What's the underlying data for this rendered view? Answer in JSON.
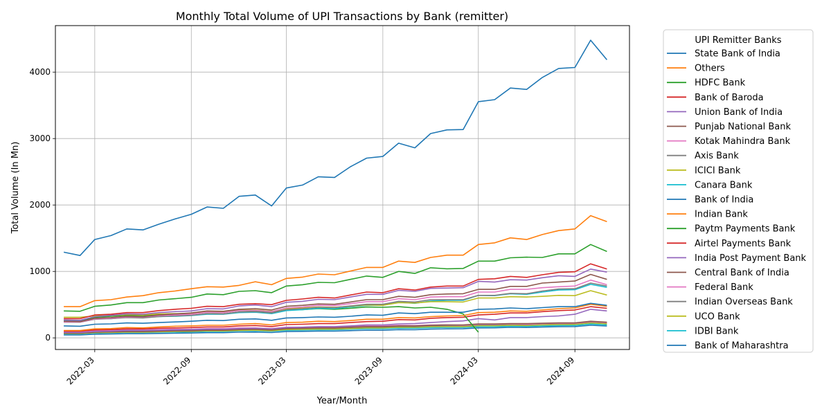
{
  "chart_data": {
    "type": "line",
    "title": "Monthly Total Volume of UPI Transactions by Bank (remitter)",
    "xlabel": "Year/Month",
    "ylabel": "Total Volume (In Mn)",
    "x": [
      "2022-01",
      "2022-02",
      "2022-03",
      "2022-04",
      "2022-05",
      "2022-06",
      "2022-07",
      "2022-08",
      "2022-09",
      "2022-10",
      "2022-11",
      "2022-12",
      "2023-01",
      "2023-02",
      "2023-03",
      "2023-04",
      "2023-05",
      "2023-06",
      "2023-07",
      "2023-08",
      "2023-09",
      "2023-10",
      "2023-11",
      "2023-12",
      "2024-01",
      "2024-02",
      "2024-03",
      "2024-04",
      "2024-05",
      "2024-06",
      "2024-07",
      "2024-08",
      "2024-09",
      "2024-10",
      "2024-11"
    ],
    "x_ticks": [
      "2022-03",
      "2022-09",
      "2023-03",
      "2023-09",
      "2024-03",
      "2024-09"
    ],
    "y_ticks": [
      0,
      1000,
      2000,
      3000,
      4000
    ],
    "xlim": [
      "2021-12-16",
      "2024-12-14"
    ],
    "ylim": [
      -175,
      4700
    ],
    "grid": true,
    "legend": {
      "title": "UPI Remitter Banks",
      "placement": "outside-right"
    },
    "series": [
      {
        "name": "State Bank of India",
        "color": "#1f77b4",
        "values": [
          1290,
          1240,
          1480,
          1540,
          1640,
          1625,
          1710,
          1790,
          1860,
          1970,
          1950,
          2130,
          2150,
          1985,
          2255,
          2300,
          2425,
          2415,
          2575,
          2705,
          2730,
          2930,
          2860,
          3075,
          3130,
          3135,
          3555,
          3585,
          3760,
          3740,
          3920,
          4055,
          4070,
          4480,
          4185
        ]
      },
      {
        "name": "Others",
        "color": "#ff7f0e",
        "values": [
          470,
          470,
          560,
          575,
          615,
          635,
          680,
          705,
          740,
          770,
          765,
          790,
          845,
          800,
          895,
          915,
          960,
          950,
          1005,
          1060,
          1060,
          1155,
          1135,
          1210,
          1245,
          1245,
          1405,
          1430,
          1505,
          1480,
          1555,
          1615,
          1640,
          1840,
          1750
        ]
      },
      {
        "name": "HDFC Bank",
        "color": "#2ca02c",
        "values": [
          405,
          400,
          475,
          495,
          530,
          530,
          570,
          590,
          610,
          660,
          650,
          700,
          710,
          680,
          780,
          800,
          835,
          830,
          880,
          930,
          910,
          1000,
          970,
          1055,
          1040,
          1045,
          1155,
          1155,
          1205,
          1215,
          1210,
          1265,
          1265,
          1405,
          1300
        ]
      },
      {
        "name": "Bank of Baroda",
        "color": "#d62728",
        "values": [
          290,
          290,
          345,
          355,
          380,
          380,
          410,
          430,
          445,
          475,
          470,
          505,
          515,
          500,
          565,
          585,
          610,
          600,
          645,
          690,
          680,
          740,
          720,
          765,
          780,
          780,
          880,
          890,
          925,
          910,
          950,
          985,
          995,
          1115,
          1035
        ]
      },
      {
        "name": "Union Bank of India",
        "color": "#9467bd",
        "values": [
          270,
          265,
          320,
          340,
          360,
          355,
          380,
          395,
          405,
          440,
          435,
          480,
          495,
          470,
          535,
          550,
          580,
          575,
          615,
          655,
          655,
          715,
          700,
          745,
          750,
          755,
          850,
          840,
          875,
          870,
          905,
          935,
          925,
          1035,
          990
        ]
      },
      {
        "name": "Punjab National Bank",
        "color": "#8c564b",
        "values": [
          250,
          245,
          295,
          305,
          325,
          320,
          345,
          360,
          375,
          405,
          400,
          430,
          440,
          420,
          475,
          490,
          510,
          505,
          540,
          575,
          575,
          625,
          610,
          650,
          660,
          665,
          730,
          730,
          775,
          775,
          825,
          840,
          855,
          955,
          880
        ]
      },
      {
        "name": "Kotak Mahindra Bank",
        "color": "#e377c2",
        "values": [
          240,
          240,
          285,
          295,
          315,
          315,
          335,
          345,
          355,
          385,
          380,
          410,
          415,
          395,
          450,
          465,
          490,
          485,
          515,
          545,
          545,
          590,
          575,
          615,
          620,
          620,
          690,
          690,
          730,
          730,
          755,
          770,
          780,
          870,
          800
        ]
      },
      {
        "name": "Axis Bank",
        "color": "#7f7f7f",
        "values": [
          235,
          235,
          280,
          290,
          305,
          300,
          320,
          330,
          340,
          365,
          360,
          390,
          395,
          375,
          425,
          440,
          460,
          455,
          480,
          505,
          505,
          550,
          540,
          575,
          575,
          575,
          640,
          640,
          670,
          665,
          705,
          735,
          740,
          825,
          780
        ]
      },
      {
        "name": "ICICI Bank",
        "color": "#bcbd22",
        "values": [
          310,
          310,
          330,
          340,
          350,
          345,
          360,
          365,
          370,
          390,
          395,
          420,
          420,
          400,
          440,
          450,
          465,
          460,
          475,
          495,
          490,
          530,
          525,
          545,
          545,
          540,
          600,
          600,
          620,
          615,
          625,
          640,
          635,
          710,
          645
        ]
      },
      {
        "name": "Canara Bank",
        "color": "#17becf",
        "values": [
          255,
          255,
          285,
          290,
          310,
          305,
          320,
          325,
          335,
          355,
          355,
          380,
          385,
          365,
          410,
          425,
          445,
          440,
          465,
          490,
          490,
          535,
          520,
          555,
          565,
          565,
          640,
          635,
          665,
          655,
          690,
          720,
          725,
          805,
          760
        ]
      },
      {
        "name": "Bank of India",
        "color": "#1f77b4",
        "values": [
          180,
          175,
          205,
          210,
          225,
          220,
          230,
          240,
          250,
          265,
          260,
          280,
          285,
          265,
          300,
          305,
          315,
          310,
          325,
          345,
          340,
          375,
          365,
          385,
          385,
          385,
          430,
          435,
          450,
          440,
          455,
          470,
          470,
          520,
          490
        ]
      },
      {
        "name": "Indian Bank",
        "color": "#ff7f0e",
        "values": [
          110,
          110,
          135,
          140,
          155,
          150,
          165,
          175,
          180,
          190,
          190,
          205,
          215,
          195,
          230,
          235,
          250,
          245,
          260,
          280,
          280,
          305,
          300,
          320,
          330,
          335,
          380,
          385,
          405,
          400,
          420,
          440,
          450,
          505,
          475
        ]
      },
      {
        "name": "Paytm Payments Bank",
        "color": "#2ca02c",
        "values": [
          260,
          255,
          310,
          325,
          340,
          335,
          350,
          355,
          360,
          385,
          380,
          410,
          405,
          390,
          420,
          425,
          440,
          430,
          445,
          465,
          460,
          470,
          450,
          460,
          430,
          360,
          85,
          null,
          null,
          null,
          null,
          null,
          null,
          null,
          null
        ]
      },
      {
        "name": "Airtel Payments Bank",
        "color": "#d62728",
        "values": [
          100,
          100,
          120,
          125,
          135,
          135,
          145,
          150,
          155,
          165,
          165,
          180,
          185,
          170,
          200,
          205,
          215,
          215,
          230,
          245,
          250,
          275,
          270,
          295,
          305,
          310,
          345,
          355,
          375,
          375,
          395,
          410,
          420,
          470,
          445
        ]
      },
      {
        "name": "India Post Payment Bank",
        "color": "#9467bd",
        "values": [
          80,
          80,
          95,
          100,
          110,
          110,
          115,
          120,
          125,
          130,
          130,
          140,
          145,
          135,
          155,
          160,
          170,
          170,
          180,
          195,
          195,
          210,
          215,
          230,
          245,
          255,
          290,
          270,
          305,
          305,
          320,
          330,
          355,
          430,
          405
        ]
      },
      {
        "name": "Central Bank of India",
        "color": "#8c564b",
        "values": [
          70,
          70,
          85,
          90,
          95,
          95,
          100,
          105,
          105,
          115,
          115,
          125,
          130,
          120,
          140,
          145,
          150,
          150,
          160,
          170,
          170,
          180,
          180,
          190,
          195,
          195,
          210,
          210,
          215,
          215,
          220,
          225,
          225,
          250,
          235
        ]
      },
      {
        "name": "Federal Bank",
        "color": "#e377c2",
        "values": [
          95,
          95,
          110,
          115,
          120,
          120,
          125,
          130,
          130,
          140,
          140,
          150,
          150,
          140,
          160,
          160,
          165,
          160,
          170,
          180,
          180,
          190,
          185,
          195,
          195,
          190,
          205,
          205,
          210,
          205,
          215,
          220,
          220,
          245,
          230
        ]
      },
      {
        "name": "Indian Overseas Bank",
        "color": "#7f7f7f",
        "values": [
          75,
          75,
          90,
          92,
          100,
          98,
          105,
          110,
          110,
          118,
          118,
          128,
          130,
          120,
          140,
          142,
          148,
          146,
          155,
          165,
          165,
          175,
          172,
          182,
          185,
          185,
          198,
          198,
          205,
          200,
          210,
          215,
          218,
          240,
          228
        ]
      },
      {
        "name": "UCO Bank",
        "color": "#bcbd22",
        "values": [
          65,
          65,
          78,
          80,
          88,
          86,
          92,
          96,
          98,
          105,
          104,
          113,
          116,
          107,
          125,
          128,
          133,
          131,
          140,
          150,
          150,
          160,
          158,
          168,
          170,
          170,
          183,
          183,
          190,
          186,
          195,
          200,
          203,
          225,
          213
        ]
      },
      {
        "name": "IDBI Bank",
        "color": "#17becf",
        "values": [
          60,
          60,
          72,
          75,
          82,
          80,
          85,
          88,
          90,
          97,
          96,
          105,
          108,
          100,
          115,
          118,
          123,
          121,
          130,
          138,
          138,
          147,
          145,
          154,
          157,
          157,
          170,
          170,
          176,
          173,
          181,
          186,
          188,
          208,
          197
        ]
      },
      {
        "name": "Bank of Maharashtra",
        "color": "#1f77b4",
        "values": [
          45,
          45,
          55,
          58,
          63,
          62,
          67,
          70,
          73,
          78,
          78,
          85,
          88,
          80,
          95,
          98,
          102,
          101,
          108,
          115,
          115,
          124,
          122,
          131,
          135,
          136,
          150,
          151,
          158,
          156,
          163,
          168,
          170,
          190,
          178
        ]
      }
    ]
  }
}
